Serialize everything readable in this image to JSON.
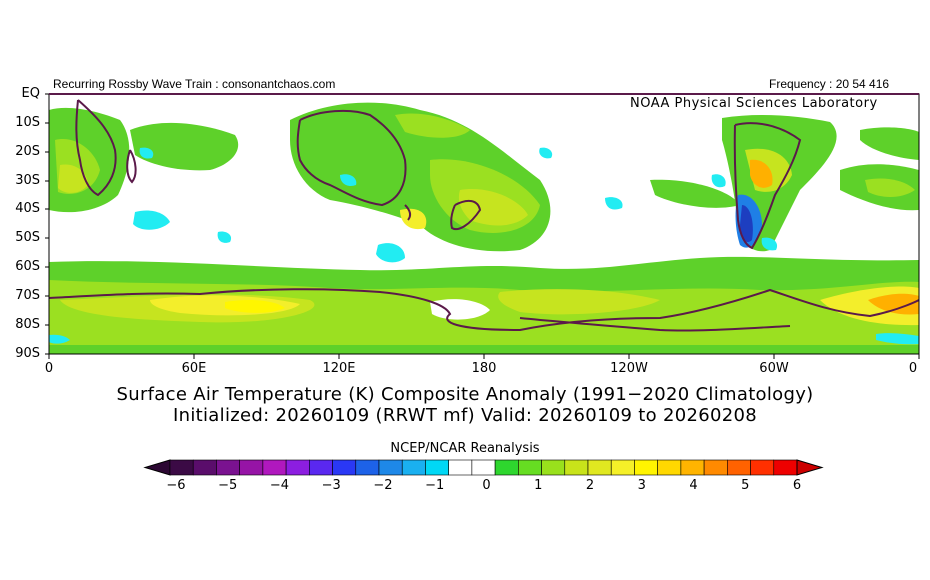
{
  "header": {
    "left": "Recurring Rossby Wave Train : consonantchaos.com",
    "right": "Frequency : 20 54 416",
    "lab": "NOAA Physical Sciences Laboratory"
  },
  "axes": {
    "lat_labels": [
      "EQ",
      "10S",
      "20S",
      "30S",
      "40S",
      "50S",
      "60S",
      "70S",
      "80S",
      "90S"
    ],
    "lon_labels": [
      "0",
      "60E",
      "120E",
      "180",
      "120W",
      "60W",
      "0"
    ]
  },
  "title": {
    "line1": "Surface Air Temperature (K) Composite Anomaly (1991−2020 Climatology)",
    "line2": "Initialized: 20260109 (RRWT mf) Valid: 20260109 to 20260208"
  },
  "colorbar": {
    "label": "NCEP/NCAR Reanalysis",
    "ticks": [
      "−6",
      "−5",
      "−4",
      "−3",
      "−2",
      "−1",
      "0",
      "1",
      "2",
      "3",
      "4",
      "5",
      "6"
    ],
    "colors": [
      "#3b0a45",
      "#5a0d6b",
      "#7a1290",
      "#9614a6",
      "#b018be",
      "#8c1ee0",
      "#5a28f0",
      "#2a38f5",
      "#1d62e8",
      "#1e88e8",
      "#1ab0f0",
      "#00d8f5",
      "#ffffff",
      "#ffffff",
      "#2ed62e",
      "#66dd22",
      "#99e01c",
      "#c8e31a",
      "#e0e820",
      "#f5f028",
      "#fff400",
      "#ffd800",
      "#ffb400",
      "#ff8a00",
      "#ff6200",
      "#ff3000",
      "#ee0000"
    ],
    "under_color": "#2c0833",
    "over_color": "#cc0000"
  },
  "palette": {
    "green": "#5ed12a",
    "lightgreen": "#9be021",
    "yellowgreen": "#c6e41f",
    "yellow": "#f3ee2b",
    "brightyellow": "#fff600",
    "orange": "#ffb000",
    "cyan": "#22ecf2",
    "blue": "#1f7fe6",
    "darkblue": "#1d3ec0",
    "coast": "#5b1a4a"
  }
}
